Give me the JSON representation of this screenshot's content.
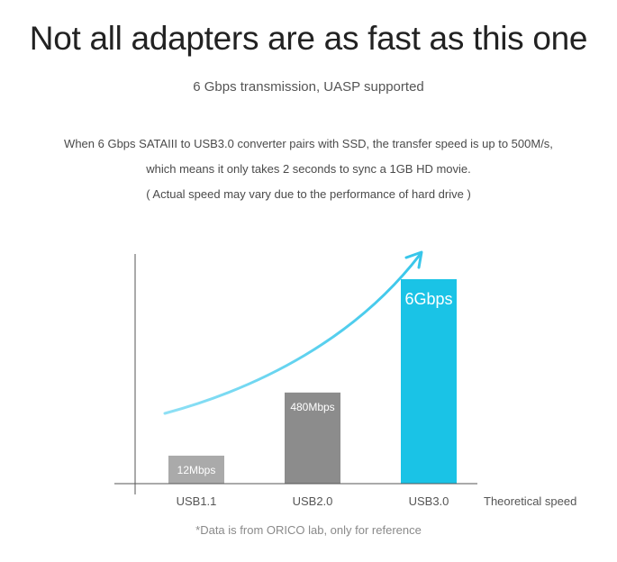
{
  "header": {
    "title": "Not all adapters are as fast as this one",
    "subtitle": "6 Gbps transmission, UASP supported"
  },
  "description": {
    "line1": "When 6 Gbps SATAIII to USB3.0 converter pairs with SSD, the transfer speed is up to 500M/s,",
    "line2": "which means it only takes 2 seconds to sync a 1GB HD movie.",
    "line3": "( Actual speed may vary due to the performance of hard drive )"
  },
  "chart_data": {
    "type": "bar",
    "categories": [
      "USB1.1",
      "USB2.0",
      "USB3.0"
    ],
    "values": [
      12,
      480,
      6000
    ],
    "data_labels": [
      "12Mbps",
      "480Mbps",
      "6Gbps"
    ],
    "xlabel": "Theoretical speed",
    "ylabel": "",
    "colors": [
      "#aaaaaa",
      "#8c8c8c",
      "#1ac3e6"
    ],
    "trend_arrow_color": "#4fcdec",
    "grid": false,
    "y_axis_ticks": false
  },
  "footnote": "*Data is from ORICO lab, only for reference"
}
